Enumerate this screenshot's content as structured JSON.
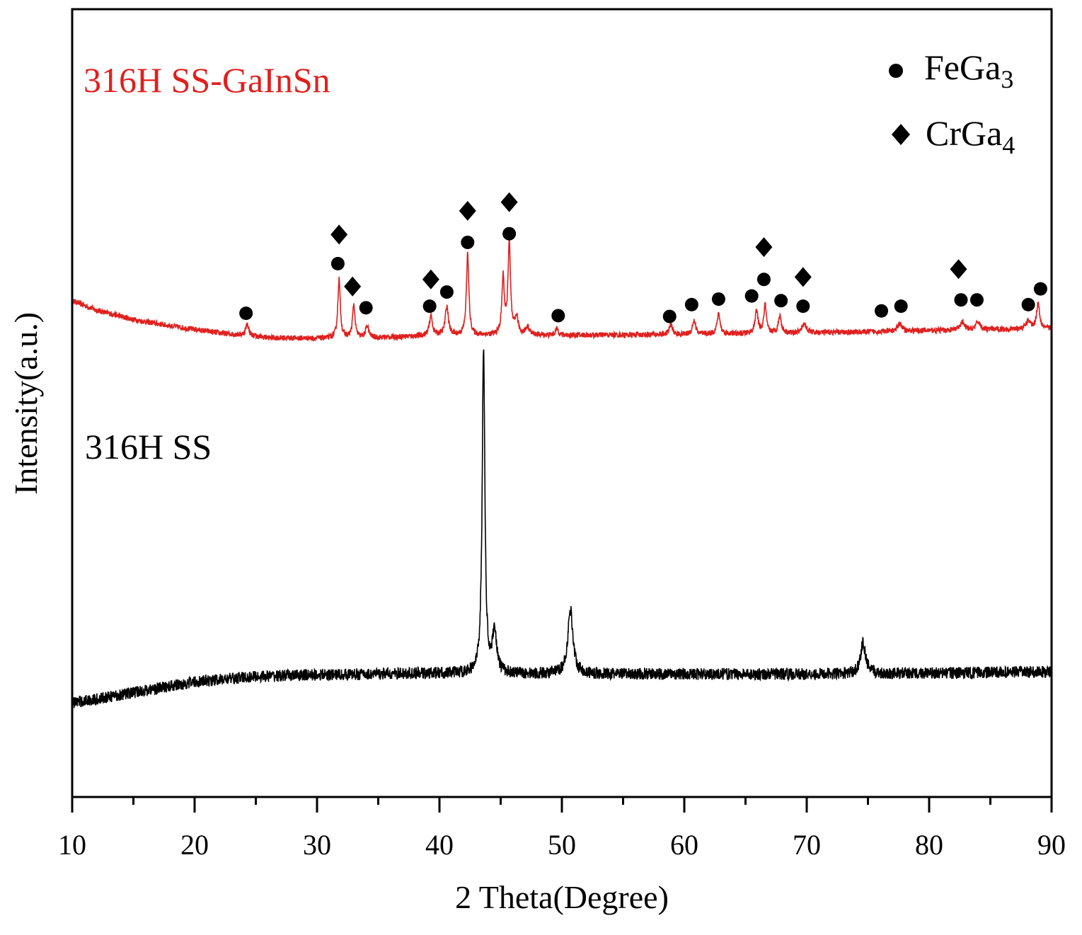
{
  "chart_data": {
    "type": "line",
    "xlabel": "2 Theta(Degree)",
    "ylabel": "Intensity(a.u.)",
    "xlim": [
      10,
      90
    ],
    "ylim": [
      0,
      100
    ],
    "xticks": [
      10,
      20,
      30,
      40,
      50,
      60,
      70,
      80,
      90
    ],
    "xminor_step": 5,
    "yticks": [],
    "grid": false,
    "legend": {
      "placement": "top-right",
      "entries": [
        {
          "marker": "circle",
          "label": "FeGa",
          "sub": "3"
        },
        {
          "marker": "diamond",
          "label": "CrGa",
          "sub": "4"
        }
      ]
    },
    "series": [
      {
        "color": "#e0201e",
        "noise": 0.35,
        "baseline": [
          [
            10,
            63
          ],
          [
            12,
            61.8
          ],
          [
            15,
            60.6
          ],
          [
            18,
            59.8
          ],
          [
            22,
            58.9
          ],
          [
            26,
            58.3
          ],
          [
            30,
            58.2
          ],
          [
            35,
            58.3
          ],
          [
            40,
            58.6
          ],
          [
            50,
            58.6
          ],
          [
            60,
            58.7
          ],
          [
            70,
            58.9
          ],
          [
            80,
            59.2
          ],
          [
            90,
            59.5
          ]
        ],
        "peaks": [
          [
            24.3,
            1.5,
            0.15
          ],
          [
            31.8,
            7.5,
            0.12
          ],
          [
            33.0,
            4.2,
            0.12
          ],
          [
            34.1,
            1.5,
            0.15
          ],
          [
            39.3,
            2.5,
            0.15
          ],
          [
            40.6,
            3.7,
            0.15
          ],
          [
            42.3,
            10.3,
            0.12
          ],
          [
            45.2,
            7.2,
            0.12
          ],
          [
            45.7,
            11.7,
            0.12
          ],
          [
            46.3,
            2.2,
            0.15
          ],
          [
            47.2,
            1,
            0.2
          ],
          [
            49.6,
            0.8,
            0.15
          ],
          [
            58.9,
            1.3,
            0.15
          ],
          [
            60.8,
            1.8,
            0.15
          ],
          [
            62.8,
            2.5,
            0.15
          ],
          [
            65.9,
            2.8,
            0.15
          ],
          [
            66.6,
            3.6,
            0.12
          ],
          [
            67.8,
            2.2,
            0.15
          ],
          [
            69.8,
            1.2,
            0.2
          ],
          [
            77.6,
            1,
            0.2
          ],
          [
            82.7,
            1,
            0.2
          ],
          [
            84,
            1,
            0.2
          ],
          [
            88.1,
            1,
            0.2
          ],
          [
            88.9,
            3.2,
            0.15
          ]
        ]
      },
      {
        "color": "#000000",
        "noise": 0.75,
        "baseline": [
          [
            10,
            12.0
          ],
          [
            12,
            12.4
          ],
          [
            14,
            13.0
          ],
          [
            17,
            13.8
          ],
          [
            20,
            14.6
          ],
          [
            25,
            15.3
          ],
          [
            30,
            15.5
          ],
          [
            40,
            15.7
          ],
          [
            50,
            15.6
          ],
          [
            60,
            15.6
          ],
          [
            70,
            15.6
          ],
          [
            80,
            15.7
          ],
          [
            90,
            15.9
          ]
        ],
        "peaks": [
          [
            43.6,
            41.5,
            0.13
          ],
          [
            44.5,
            5.4,
            0.2
          ],
          [
            50.7,
            8.2,
            0.25
          ],
          [
            74.6,
            3.9,
            0.25
          ]
        ]
      }
    ],
    "markers": {
      "FeGa3": [
        [
          24.2,
          61.4
        ],
        [
          31.7,
          67.7
        ],
        [
          34.0,
          62.1
        ],
        [
          39.2,
          62.3
        ],
        [
          40.6,
          64.1
        ],
        [
          42.3,
          70.4
        ],
        [
          45.7,
          71.5
        ],
        [
          49.7,
          61.1
        ],
        [
          58.8,
          61.0
        ],
        [
          60.6,
          62.5
        ],
        [
          62.8,
          63.2
        ],
        [
          65.5,
          63.6
        ],
        [
          66.5,
          65.7
        ],
        [
          67.9,
          63.0
        ],
        [
          69.7,
          62.3
        ],
        [
          76.1,
          61.7
        ],
        [
          77.7,
          62.3
        ],
        [
          82.6,
          63.1
        ],
        [
          83.9,
          63.1
        ],
        [
          88.1,
          62.5
        ],
        [
          89.1,
          64.5
        ]
      ],
      "CrGa4": [
        [
          31.8,
          71.4
        ],
        [
          32.9,
          64.8
        ],
        [
          39.3,
          65.7
        ],
        [
          42.3,
          74.4
        ],
        [
          45.7,
          75.5
        ],
        [
          66.5,
          69.8
        ],
        [
          69.7,
          66.0
        ],
        [
          82.4,
          67.0
        ]
      ]
    },
    "annotations": [
      {
        "text": "316H SS-GaInSn",
        "color": "#e0201e"
      },
      {
        "text": "316H SS",
        "color": "#000000"
      }
    ]
  }
}
